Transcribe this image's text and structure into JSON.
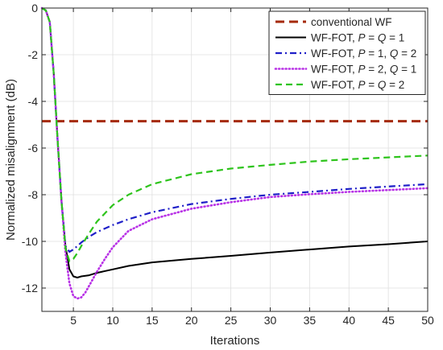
{
  "chart_data": {
    "type": "line",
    "title": "",
    "xlabel": "Iterations",
    "ylabel": "Normalized misalignment (dB)",
    "xlim": [
      1,
      50
    ],
    "ylim": [
      -13,
      0
    ],
    "xticks": [
      5,
      10,
      15,
      20,
      25,
      30,
      35,
      40,
      45,
      50
    ],
    "yticks": [
      0,
      -2,
      -4,
      -6,
      -8,
      -10,
      -12
    ],
    "grid": true,
    "legend_position": "top-right",
    "series": [
      {
        "name": "conventional WF",
        "color": "#a52a0a",
        "dash": "dashed-thick",
        "x": [
          1,
          50
        ],
        "y": [
          -4.85,
          -4.85
        ]
      },
      {
        "name": "WF-FOT, P = Q = 1",
        "legend_parts": [
          {
            "t": "WF-FOT, ",
            "i": false
          },
          {
            "t": "P",
            "i": true
          },
          {
            "t": " = ",
            "i": false
          },
          {
            "t": "Q",
            "i": true
          },
          {
            "t": " = 1",
            "i": false
          }
        ],
        "color": "#000000",
        "dash": "solid",
        "x": [
          1,
          1.5,
          2,
          2.5,
          3,
          3.5,
          4,
          4.5,
          5,
          5.5,
          6,
          7,
          8,
          10,
          12,
          15,
          20,
          25,
          30,
          35,
          40,
          45,
          50
        ],
        "y": [
          0,
          -0.1,
          -0.6,
          -2.8,
          -5.7,
          -8.3,
          -10.2,
          -11.2,
          -11.5,
          -11.55,
          -11.5,
          -11.45,
          -11.35,
          -11.2,
          -11.05,
          -10.9,
          -10.75,
          -10.62,
          -10.48,
          -10.35,
          -10.22,
          -10.12,
          -10.0
        ]
      },
      {
        "name": "WF-FOT, P = 1, Q = 2",
        "legend_parts": [
          {
            "t": "WF-FOT, ",
            "i": false
          },
          {
            "t": "P",
            "i": true
          },
          {
            "t": " = 1, ",
            "i": false
          },
          {
            "t": "Q",
            "i": true
          },
          {
            "t": " = 2",
            "i": false
          }
        ],
        "color": "#1f1fc8",
        "dash": "dashdot",
        "x": [
          1,
          1.5,
          2,
          2.5,
          3,
          3.5,
          4,
          4.5,
          5,
          5.5,
          6,
          7,
          8,
          10,
          12,
          15,
          20,
          25,
          30,
          35,
          40,
          45,
          50
        ],
        "y": [
          0,
          -0.1,
          -0.6,
          -2.8,
          -5.7,
          -8.3,
          -10.2,
          -10.45,
          -10.35,
          -10.2,
          -10.05,
          -9.8,
          -9.6,
          -9.3,
          -9.05,
          -8.75,
          -8.4,
          -8.18,
          -8.0,
          -7.88,
          -7.75,
          -7.65,
          -7.55
        ]
      },
      {
        "name": "WF-FOT, P = 2, Q = 1",
        "legend_parts": [
          {
            "t": "WF-FOT, ",
            "i": false
          },
          {
            "t": "P",
            "i": true
          },
          {
            "t": " = 2, ",
            "i": false
          },
          {
            "t": "Q",
            "i": true
          },
          {
            "t": " = 1",
            "i": false
          }
        ],
        "color": "#b832e6",
        "dash": "dotted",
        "x": [
          1,
          1.5,
          2,
          2.5,
          3,
          3.5,
          4,
          4.5,
          5,
          5.5,
          6,
          6.5,
          7,
          8,
          9,
          10,
          12,
          15,
          20,
          25,
          30,
          35,
          40,
          45,
          50
        ],
        "y": [
          0,
          -0.1,
          -0.6,
          -2.8,
          -5.7,
          -8.3,
          -10.5,
          -11.8,
          -12.35,
          -12.45,
          -12.4,
          -12.2,
          -11.9,
          -11.3,
          -10.75,
          -10.25,
          -9.55,
          -9.05,
          -8.6,
          -8.32,
          -8.1,
          -7.98,
          -7.88,
          -7.8,
          -7.72
        ]
      },
      {
        "name": "WF-FOT, P = Q = 2",
        "legend_parts": [
          {
            "t": "WF-FOT, ",
            "i": false
          },
          {
            "t": "P",
            "i": true
          },
          {
            "t": " = ",
            "i": false
          },
          {
            "t": "Q",
            "i": true
          },
          {
            "t": " = 2",
            "i": false
          }
        ],
        "color": "#2ec41c",
        "dash": "dashed",
        "x": [
          1,
          1.5,
          2,
          2.5,
          3,
          3.5,
          4,
          4.5,
          5,
          5.5,
          6,
          7,
          8,
          10,
          12,
          15,
          20,
          25,
          30,
          35,
          40,
          45,
          50
        ],
        "y": [
          0,
          -0.1,
          -0.6,
          -2.8,
          -5.7,
          -8.3,
          -10.3,
          -10.85,
          -10.75,
          -10.5,
          -10.2,
          -9.65,
          -9.15,
          -8.45,
          -8.0,
          -7.55,
          -7.12,
          -6.88,
          -6.72,
          -6.58,
          -6.48,
          -6.4,
          -6.32
        ]
      }
    ]
  }
}
